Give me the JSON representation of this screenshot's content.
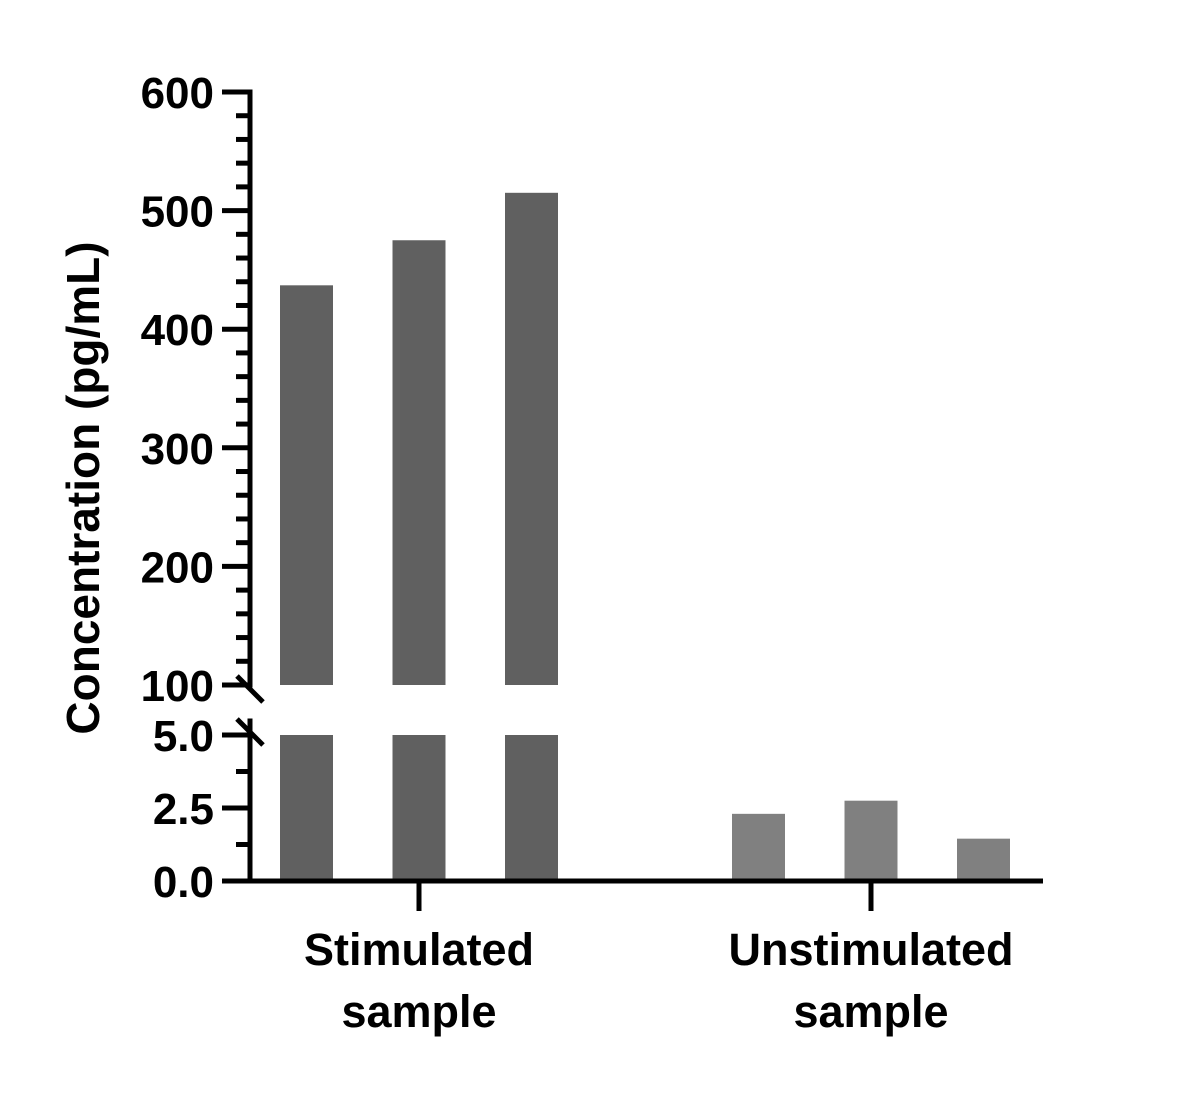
{
  "chart_data": {
    "type": "bar",
    "title": "",
    "xlabel": "",
    "ylabel": "Concentration (pg/mL)",
    "y_axis_break": {
      "lower_range": [
        0,
        5
      ],
      "upper_range": [
        100,
        600
      ]
    },
    "lower_ticks": [
      "0.0",
      "2.5",
      "5.0"
    ],
    "upper_ticks": [
      "100",
      "200",
      "300",
      "400",
      "500",
      "600"
    ],
    "categories": [
      {
        "label_line1": "Stimulated",
        "label_line2": "sample",
        "values": [
          437,
          475,
          515
        ],
        "color": "#606060"
      },
      {
        "label_line1": "Unstimulated",
        "label_line2": "sample",
        "values": [
          2.3,
          2.75,
          1.45
        ],
        "color": "#808080"
      }
    ],
    "grid": false,
    "legend": "none"
  }
}
